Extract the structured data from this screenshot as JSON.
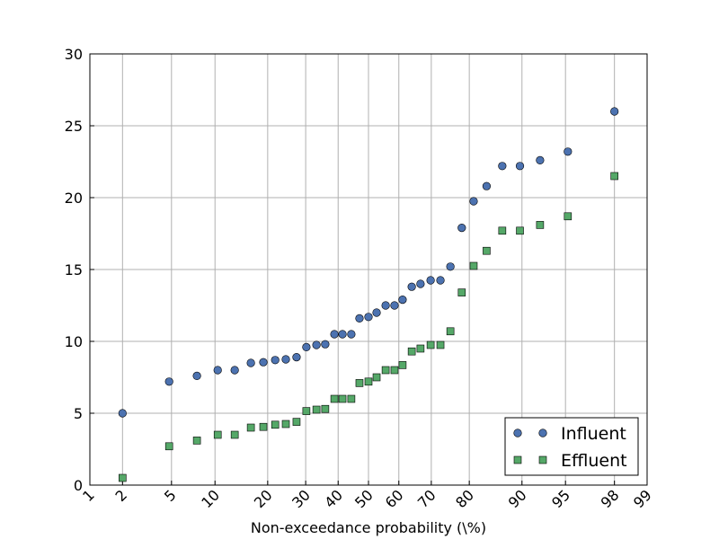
{
  "chart_data": {
    "type": "scatter",
    "xscale": "probit",
    "grid": true,
    "legend": "lower right",
    "xlabel": "Non-exceedance probability (\\%)",
    "x": [
      2,
      4.8,
      7.6,
      10.4,
      13.2,
      16.3,
      19.0,
      21.8,
      24.5,
      27.4,
      30.2,
      33.2,
      35.9,
      38.8,
      41.4,
      44.3,
      47.0,
      50,
      52.7,
      55.7,
      58.6,
      61.2,
      64.1,
      66.8,
      69.8,
      72.6,
      75.3,
      78.2,
      81.0,
      83.8,
      86.8,
      89.7,
      92.4,
      95.2,
      98
    ],
    "series": [
      {
        "name": "Influent",
        "color": "#4c72b0",
        "marker": "circle",
        "values": [
          5.0,
          7.2,
          7.6,
          8.0,
          8.0,
          8.5,
          8.55,
          8.7,
          8.75,
          8.9,
          9.6,
          9.75,
          9.8,
          10.5,
          10.5,
          10.5,
          11.6,
          11.7,
          12.0,
          12.5,
          12.5,
          12.9,
          13.8,
          14.0,
          14.25,
          14.25,
          15.2,
          17.9,
          19.75,
          20.8,
          22.2,
          22.2,
          22.6,
          23.2,
          26.0
        ]
      },
      {
        "name": "Effluent",
        "color": "#55a868",
        "marker": "square",
        "values": [
          0.5,
          2.7,
          3.1,
          3.5,
          3.5,
          4.0,
          4.05,
          4.2,
          4.25,
          4.4,
          5.15,
          5.25,
          5.3,
          6.0,
          6.0,
          6.0,
          7.1,
          7.2,
          7.5,
          8.0,
          8.0,
          8.35,
          9.3,
          9.5,
          9.75,
          9.75,
          10.7,
          13.4,
          15.25,
          16.3,
          17.7,
          17.7,
          18.1,
          18.7,
          21.5
        ]
      }
    ],
    "xlim": [
      1,
      99
    ],
    "xticks": [
      1,
      2,
      5,
      10,
      20,
      30,
      40,
      50,
      60,
      70,
      80,
      90,
      95,
      98,
      99
    ],
    "ylim": [
      0,
      30
    ],
    "yticks": [
      0,
      5,
      10,
      15,
      20,
      25,
      30
    ]
  }
}
